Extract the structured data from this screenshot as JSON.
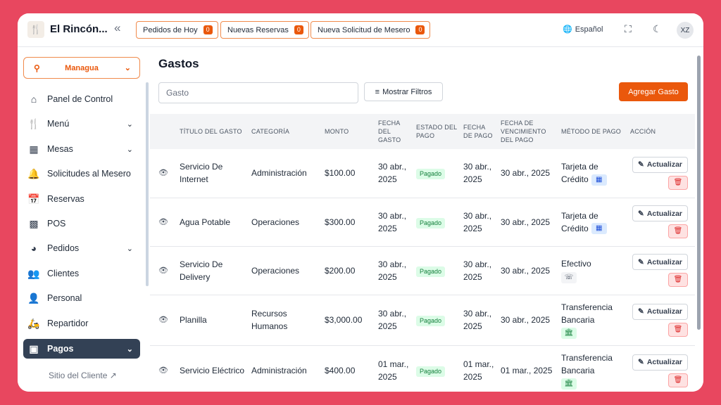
{
  "header": {
    "brand": "El Rincón...",
    "pills": [
      {
        "label": "Pedidos de Hoy",
        "count": "0"
      },
      {
        "label": "Nuevas Reservas",
        "count": "0"
      },
      {
        "label": "Nueva Solicitud de Mesero",
        "count": "0"
      }
    ],
    "language": "Español",
    "avatar": "XZ"
  },
  "sidebar": {
    "location": "Managua",
    "items": [
      {
        "label": "Panel de Control",
        "icon": "home-icon"
      },
      {
        "label": "Menú",
        "icon": "menu-icon"
      },
      {
        "label": "Mesas",
        "icon": "table-icon"
      },
      {
        "label": "Solicitudes al Mesero",
        "icon": "bell-icon"
      },
      {
        "label": "Reservas",
        "icon": "calendar-icon"
      },
      {
        "label": "POS",
        "icon": "pos-icon"
      },
      {
        "label": "Pedidos",
        "icon": "cloche-icon"
      },
      {
        "label": "Clientes",
        "icon": "users-icon"
      },
      {
        "label": "Personal",
        "icon": "staff-icon"
      },
      {
        "label": "Repartidor",
        "icon": "scooter-icon"
      },
      {
        "label": "Pagos",
        "icon": "wallet-icon"
      }
    ],
    "client_site": "Sitio del Cliente"
  },
  "main": {
    "title": "Gastos",
    "search_placeholder": "Gasto",
    "filters_label": "Mostrar Filtros",
    "add_label": "Agregar Gasto",
    "columns": [
      "Título del Gasto",
      "Categoría",
      "Monto",
      "Fecha del Gasto",
      "Estado del Pago",
      "Fecha de Pago",
      "Fecha de Vencimiento del Pago",
      "Método de Pago",
      "Acción"
    ],
    "update_label": "Actualizar",
    "rows": [
      {
        "title": "Servicio De Internet",
        "category": "Administración",
        "amount": "$100.00",
        "date": "30 abr., 2025",
        "status": "Pagado",
        "paid": "30 abr., 2025",
        "due": "30 abr., 2025",
        "method": "Tarjeta de Crédito",
        "method_icon": "card-icon"
      },
      {
        "title": "Agua Potable",
        "category": "Operaciones",
        "amount": "$300.00",
        "date": "30 abr., 2025",
        "status": "Pagado",
        "paid": "30 abr., 2025",
        "due": "30 abr., 2025",
        "method": "Tarjeta de Crédito",
        "method_icon": "card-icon"
      },
      {
        "title": "Servicio De Delivery",
        "category": "Operaciones",
        "amount": "$200.00",
        "date": "30 abr., 2025",
        "status": "Pagado",
        "paid": "30 abr., 2025",
        "due": "30 abr., 2025",
        "method": "Efectivo",
        "method_icon": "cash-icon"
      },
      {
        "title": "Planilla",
        "category": "Recursos Humanos",
        "amount": "$3,000.00",
        "date": "30 abr., 2025",
        "status": "Pagado",
        "paid": "30 abr., 2025",
        "due": "30 abr., 2025",
        "method": "Transferencia Bancaria",
        "method_icon": "bank-icon"
      },
      {
        "title": "Servicio Eléctrico",
        "category": "Administración",
        "amount": "$400.00",
        "date": "01 mar., 2025",
        "status": "Pagado",
        "paid": "01 mar., 2025",
        "due": "01 mar., 2025",
        "method": "Transferencia Bancaria",
        "method_icon": "bank-icon"
      }
    ]
  }
}
